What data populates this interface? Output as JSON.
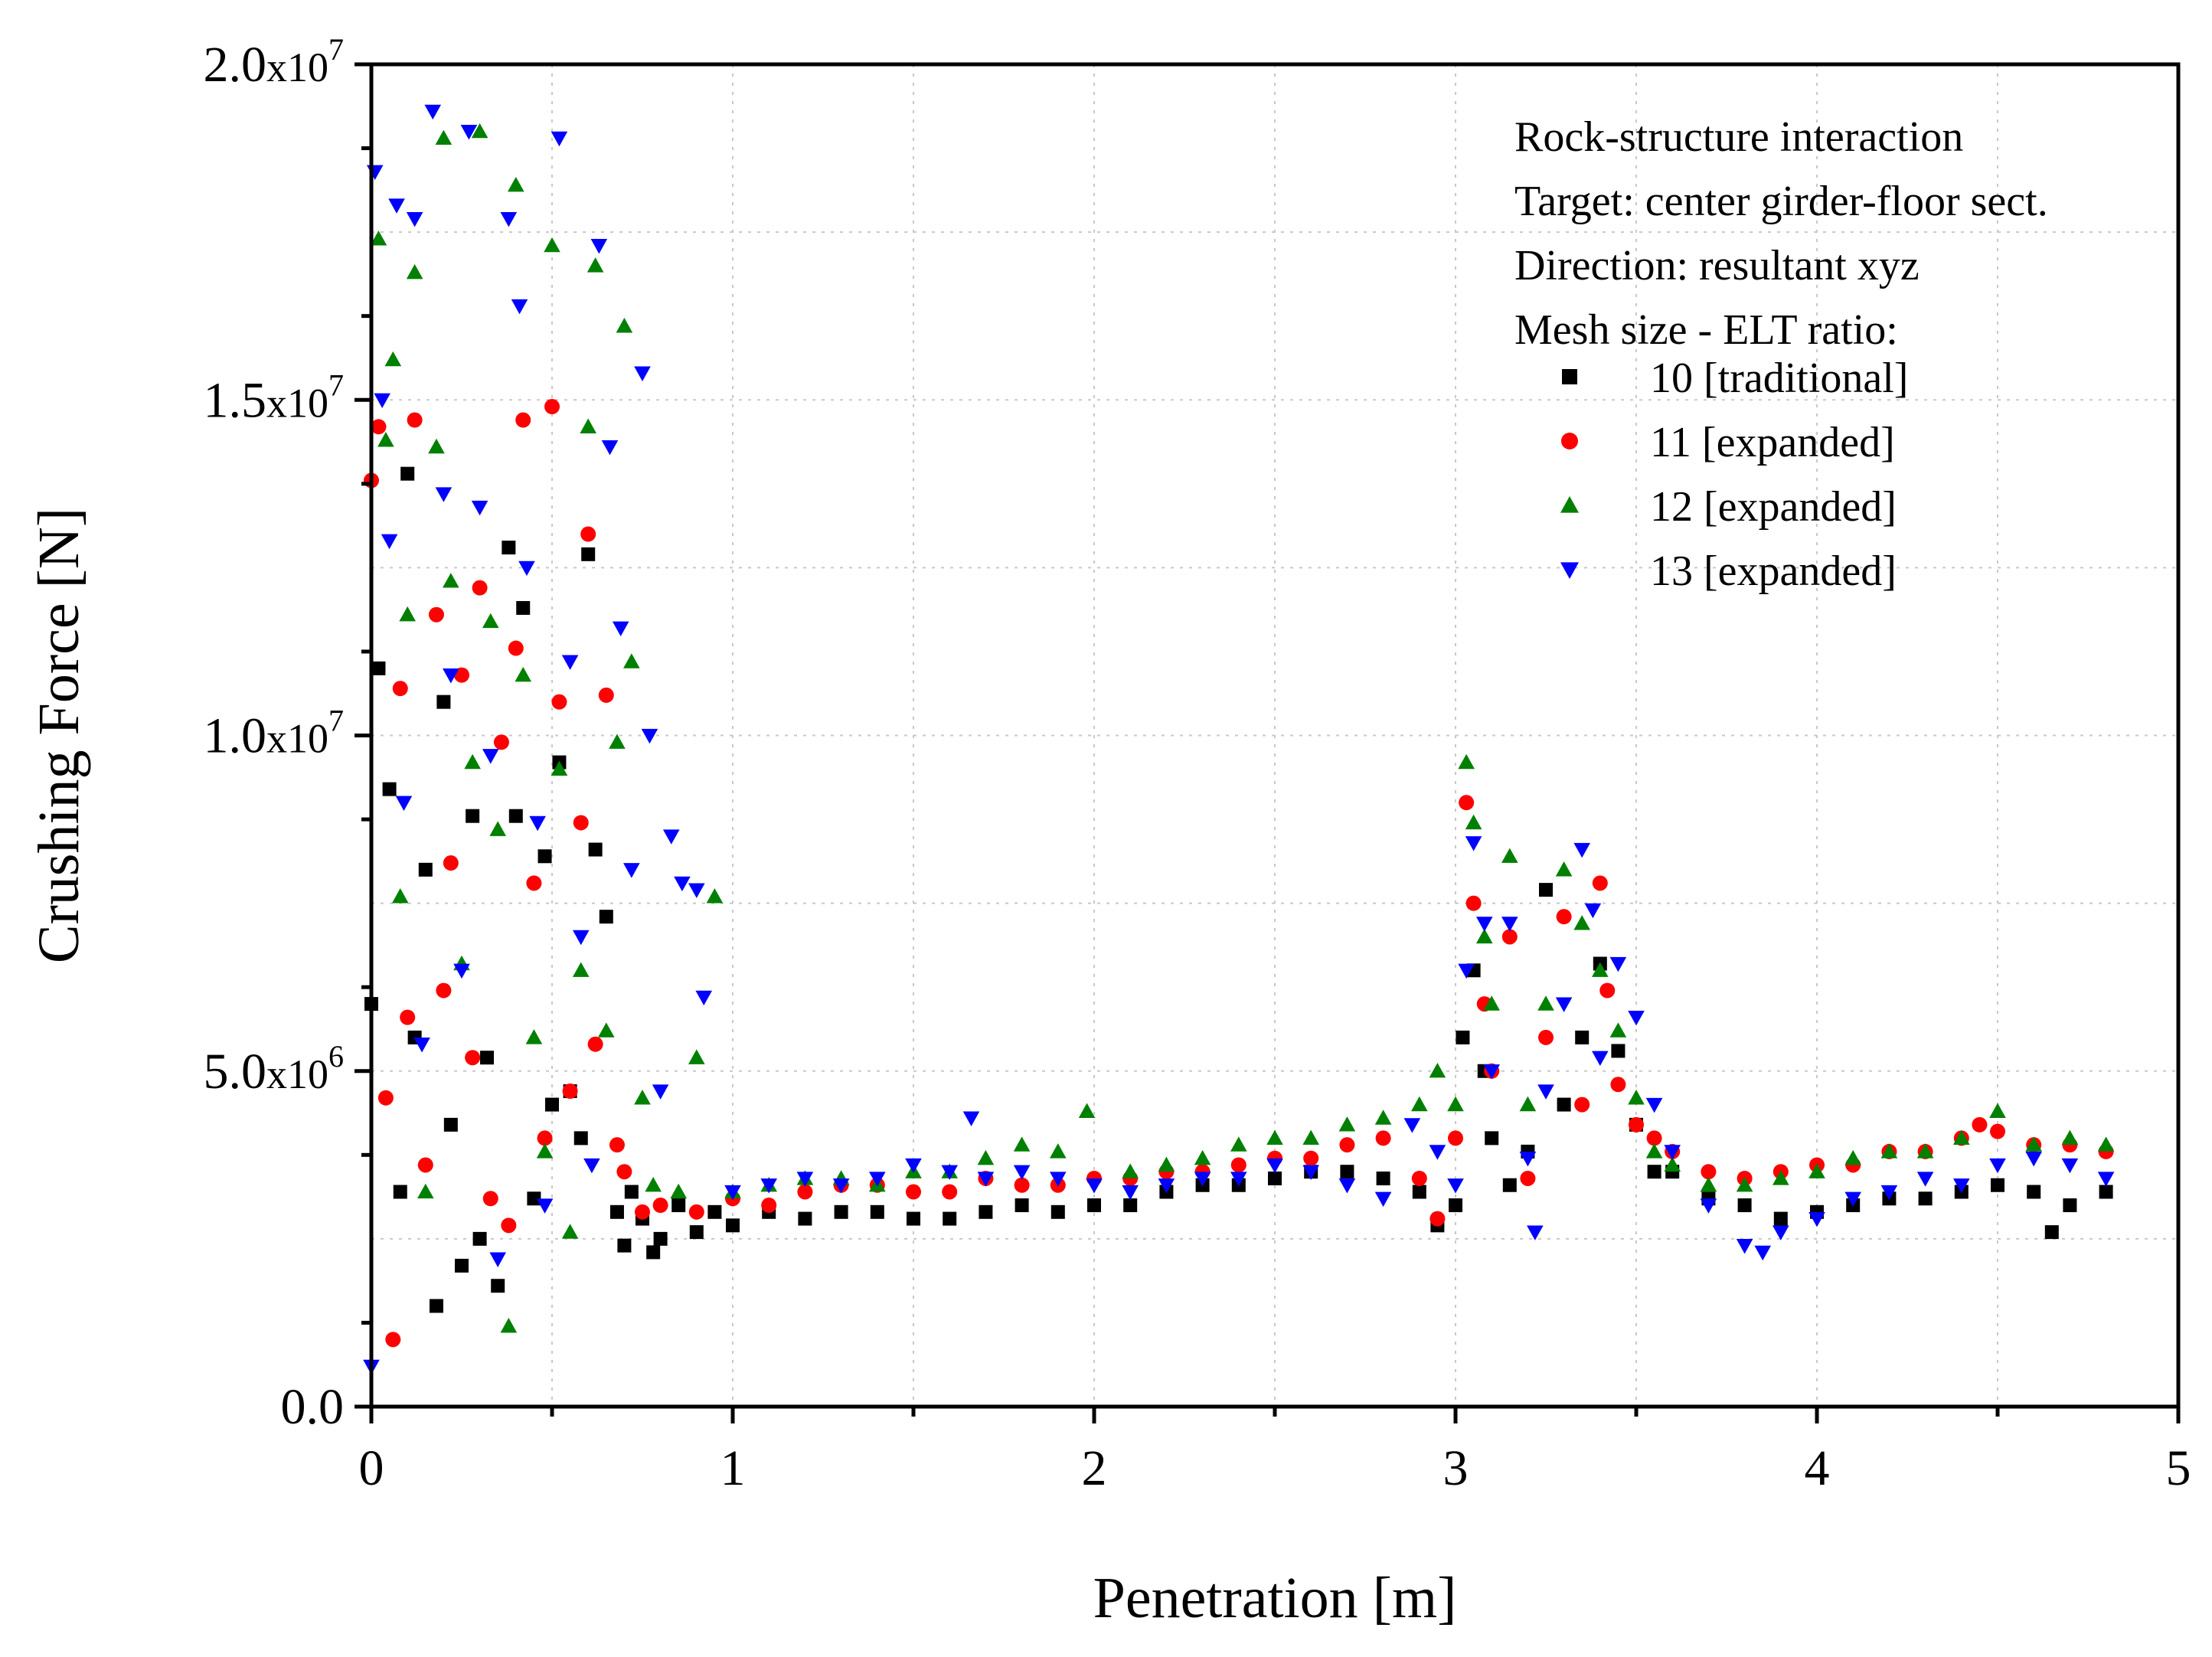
{
  "chart_data": {
    "type": "scatter",
    "title": "",
    "xlabel": "Penetration [m]",
    "ylabel": "Crushing Force [N]",
    "xlim": [
      0,
      5
    ],
    "ylim": [
      0,
      20000000
    ],
    "x_ticks": [
      0,
      1,
      2,
      3,
      4,
      5
    ],
    "x_tick_labels": [
      "0",
      "1",
      "2",
      "3",
      "4",
      "5"
    ],
    "y_ticks": [
      {
        "value": 0,
        "mantissa": "0.0",
        "exponent": ""
      },
      {
        "value": 5000000,
        "mantissa": "5.0",
        "exponent": "6"
      },
      {
        "value": 10000000,
        "mantissa": "1.0",
        "exponent": "7"
      },
      {
        "value": 15000000,
        "mantissa": "1.5",
        "exponent": "7"
      },
      {
        "value": 20000000,
        "mantissa": "2.0",
        "exponent": "7"
      }
    ],
    "y_tick_times": "x10",
    "grid": true,
    "legend_position": "top-right",
    "annotation_lines": [
      "Rock-structure interaction",
      "Target: center girder-floor sect.",
      "Direction: resultant xyz",
      "Mesh size - ELT ratio:"
    ],
    "series": [
      {
        "name": "10 [traditional]",
        "marker": "square",
        "color": "#000000",
        "x": [
          0.0,
          0.02,
          0.05,
          0.08,
          0.1,
          0.12,
          0.15,
          0.18,
          0.2,
          0.22,
          0.25,
          0.28,
          0.3,
          0.32,
          0.35,
          0.38,
          0.4,
          0.42,
          0.45,
          0.48,
          0.5,
          0.52,
          0.55,
          0.58,
          0.6,
          0.62,
          0.65,
          0.68,
          0.7,
          0.72,
          0.75,
          0.78,
          0.8,
          0.85,
          0.9,
          0.95,
          1.0,
          1.1,
          1.2,
          1.3,
          1.4,
          1.5,
          1.6,
          1.7,
          1.8,
          1.9,
          2.0,
          2.1,
          2.2,
          2.3,
          2.4,
          2.5,
          2.6,
          2.7,
          2.8,
          2.9,
          2.95,
          3.0,
          3.02,
          3.05,
          3.08,
          3.1,
          3.15,
          3.2,
          3.25,
          3.3,
          3.35,
          3.4,
          3.45,
          3.5,
          3.55,
          3.6,
          3.7,
          3.8,
          3.9,
          4.0,
          4.1,
          4.2,
          4.3,
          4.4,
          4.5,
          4.6,
          4.65,
          4.7,
          4.8
        ],
        "y": [
          6000000,
          11000000,
          9200000,
          3200000,
          13900000,
          5500000,
          8000000,
          1500000,
          10500000,
          4200000,
          2100000,
          8800000,
          2500000,
          5200000,
          1800000,
          12800000,
          8800000,
          11900000,
          3100000,
          8200000,
          4500000,
          9600000,
          4700000,
          4000000,
          12700000,
          8300000,
          7300000,
          2900000,
          2400000,
          3200000,
          2800000,
          2300000,
          2500000,
          3000000,
          2600000,
          2900000,
          2700000,
          2900000,
          2800000,
          2900000,
          2900000,
          2800000,
          2800000,
          2900000,
          3000000,
          2900000,
          3000000,
          3000000,
          3200000,
          3300000,
          3300000,
          3400000,
          3500000,
          3500000,
          3400000,
          3200000,
          2700000,
          3000000,
          5500000,
          6500000,
          5000000,
          4000000,
          3300000,
          3800000,
          7700000,
          4500000,
          5500000,
          6600000,
          5300000,
          4200000,
          3500000,
          3500000,
          3100000,
          3000000,
          2800000,
          2900000,
          3000000,
          3100000,
          3100000,
          3200000,
          3300000,
          3200000,
          2600000,
          3000000,
          3200000
        ]
      },
      {
        "name": "11 [expanded]",
        "marker": "circle",
        "color": "#ff0000",
        "x": [
          0.0,
          0.02,
          0.04,
          0.06,
          0.08,
          0.1,
          0.12,
          0.15,
          0.18,
          0.2,
          0.22,
          0.25,
          0.28,
          0.3,
          0.33,
          0.36,
          0.38,
          0.4,
          0.42,
          0.45,
          0.48,
          0.5,
          0.52,
          0.55,
          0.58,
          0.6,
          0.62,
          0.65,
          0.68,
          0.7,
          0.75,
          0.8,
          0.9,
          1.0,
          1.1,
          1.2,
          1.3,
          1.4,
          1.5,
          1.6,
          1.7,
          1.8,
          1.9,
          2.0,
          2.1,
          2.2,
          2.3,
          2.4,
          2.5,
          2.6,
          2.7,
          2.8,
          2.9,
          2.95,
          3.0,
          3.03,
          3.05,
          3.08,
          3.1,
          3.15,
          3.2,
          3.25,
          3.3,
          3.35,
          3.4,
          3.42,
          3.45,
          3.5,
          3.55,
          3.6,
          3.7,
          3.8,
          3.9,
          4.0,
          4.1,
          4.2,
          4.3,
          4.4,
          4.45,
          4.5,
          4.6,
          4.7,
          4.8
        ],
        "y": [
          13800000,
          14600000,
          4600000,
          1000000,
          10700000,
          5800000,
          14700000,
          3600000,
          11800000,
          6200000,
          8100000,
          10900000,
          5200000,
          12200000,
          3100000,
          9900000,
          2700000,
          11300000,
          14700000,
          7800000,
          4000000,
          14900000,
          10500000,
          4700000,
          8700000,
          13000000,
          5400000,
          10600000,
          3900000,
          3500000,
          2900000,
          3000000,
          2900000,
          3100000,
          3000000,
          3200000,
          3300000,
          3300000,
          3200000,
          3200000,
          3400000,
          3300000,
          3300000,
          3400000,
          3400000,
          3500000,
          3500000,
          3600000,
          3700000,
          3700000,
          3900000,
          4000000,
          3400000,
          2800000,
          4000000,
          9000000,
          7500000,
          6000000,
          5000000,
          7000000,
          3400000,
          5500000,
          7300000,
          4500000,
          7800000,
          6200000,
          4800000,
          4200000,
          4000000,
          3800000,
          3500000,
          3400000,
          3500000,
          3600000,
          3600000,
          3800000,
          3800000,
          4000000,
          4200000,
          4100000,
          3900000,
          3900000,
          3800000
        ]
      },
      {
        "name": "12 [expanded]",
        "marker": "triangle-up",
        "color": "#008000",
        "x": [
          0.02,
          0.04,
          0.06,
          0.08,
          0.1,
          0.12,
          0.15,
          0.18,
          0.2,
          0.22,
          0.25,
          0.28,
          0.3,
          0.33,
          0.35,
          0.38,
          0.4,
          0.42,
          0.45,
          0.48,
          0.5,
          0.52,
          0.55,
          0.58,
          0.6,
          0.62,
          0.65,
          0.68,
          0.7,
          0.72,
          0.75,
          0.78,
          0.85,
          0.9,
          0.95,
          1.0,
          1.1,
          1.2,
          1.3,
          1.4,
          1.5,
          1.6,
          1.7,
          1.8,
          1.9,
          1.98,
          2.1,
          2.2,
          2.3,
          2.4,
          2.5,
          2.6,
          2.7,
          2.8,
          2.9,
          2.95,
          3.0,
          3.03,
          3.05,
          3.08,
          3.1,
          3.15,
          3.2,
          3.25,
          3.3,
          3.35,
          3.4,
          3.45,
          3.5,
          3.55,
          3.6,
          3.7,
          3.8,
          3.9,
          4.0,
          4.1,
          4.2,
          4.3,
          4.4,
          4.5,
          4.6,
          4.7,
          4.8
        ],
        "y": [
          17400000,
          14400000,
          15600000,
          7600000,
          11800000,
          16900000,
          3200000,
          14300000,
          18900000,
          12300000,
          6600000,
          9600000,
          19000000,
          11700000,
          8600000,
          1200000,
          18200000,
          10900000,
          5500000,
          3800000,
          17300000,
          9500000,
          2600000,
          6500000,
          14600000,
          17000000,
          5600000,
          9900000,
          16100000,
          11100000,
          4600000,
          3300000,
          3200000,
          5200000,
          7600000,
          3200000,
          3300000,
          3400000,
          3400000,
          3300000,
          3500000,
          3500000,
          3700000,
          3900000,
          3800000,
          4400000,
          3500000,
          3600000,
          3700000,
          3900000,
          4000000,
          4000000,
          4200000,
          4300000,
          4500000,
          5000000,
          4500000,
          9600000,
          8700000,
          7000000,
          6000000,
          8200000,
          4500000,
          6000000,
          8000000,
          7200000,
          6500000,
          5600000,
          4600000,
          3800000,
          3600000,
          3300000,
          3300000,
          3400000,
          3500000,
          3700000,
          3800000,
          3800000,
          4000000,
          4400000,
          3900000,
          4000000,
          3900000
        ]
      },
      {
        "name": "13 [expanded]",
        "marker": "triangle-down",
        "color": "#0000ff",
        "x": [
          0.0,
          0.01,
          0.03,
          0.05,
          0.07,
          0.09,
          0.12,
          0.14,
          0.17,
          0.2,
          0.22,
          0.25,
          0.27,
          0.3,
          0.33,
          0.35,
          0.38,
          0.41,
          0.43,
          0.46,
          0.48,
          0.52,
          0.55,
          0.58,
          0.61,
          0.63,
          0.66,
          0.69,
          0.72,
          0.75,
          0.77,
          0.8,
          0.83,
          0.86,
          0.9,
          0.92,
          1.0,
          1.1,
          1.2,
          1.3,
          1.4,
          1.5,
          1.6,
          1.66,
          1.7,
          1.8,
          1.9,
          2.0,
          2.1,
          2.2,
          2.3,
          2.4,
          2.5,
          2.6,
          2.7,
          2.8,
          2.88,
          2.95,
          3.0,
          3.03,
          3.05,
          3.08,
          3.1,
          3.15,
          3.2,
          3.22,
          3.25,
          3.3,
          3.35,
          3.38,
          3.4,
          3.45,
          3.5,
          3.55,
          3.6,
          3.7,
          3.8,
          3.85,
          3.9,
          4.0,
          4.1,
          4.2,
          4.3,
          4.4,
          4.5,
          4.6,
          4.7,
          4.8
        ],
        "y": [
          600000,
          18400000,
          15000000,
          12900000,
          17900000,
          9000000,
          17700000,
          5400000,
          19300000,
          13600000,
          10900000,
          6500000,
          19000000,
          13400000,
          9700000,
          2200000,
          17700000,
          16400000,
          12500000,
          8700000,
          3000000,
          18900000,
          11100000,
          7000000,
          3600000,
          17300000,
          14300000,
          11600000,
          8000000,
          15400000,
          10000000,
          4700000,
          8500000,
          7800000,
          7700000,
          6100000,
          3200000,
          3300000,
          3400000,
          3300000,
          3400000,
          3600000,
          3500000,
          4300000,
          3400000,
          3500000,
          3400000,
          3300000,
          3200000,
          3300000,
          3400000,
          3400000,
          3600000,
          3500000,
          3300000,
          3100000,
          4200000,
          3800000,
          3300000,
          6500000,
          8400000,
          7200000,
          5000000,
          7200000,
          3700000,
          2600000,
          4700000,
          6000000,
          8300000,
          7400000,
          5200000,
          6600000,
          5800000,
          4500000,
          3800000,
          3000000,
          2400000,
          2300000,
          2600000,
          2800000,
          3100000,
          3200000,
          3400000,
          3300000,
          3600000,
          3700000,
          3600000,
          3400000
        ]
      }
    ]
  }
}
